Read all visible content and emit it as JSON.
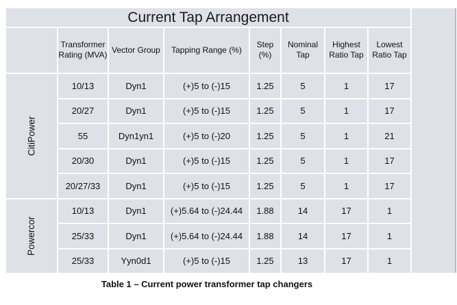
{
  "title": "Current Tap Arrangement",
  "headers": [
    "Transformer Rating (MVA)",
    "Vector Group",
    "Tapping Range (%)",
    "Step (%)",
    "Nominal Tap",
    "Highest Ratio Tap",
    "Lowest Ratio Tap"
  ],
  "groups": [
    {
      "name": "CitiPower",
      "rows": [
        [
          "10/13",
          "Dyn1",
          "(+)5 to (-)15",
          "1.25",
          "5",
          "1",
          "17"
        ],
        [
          "20/27",
          "Dyn1",
          "(+)5 to (-)15",
          "1.25",
          "5",
          "1",
          "17"
        ],
        [
          "55",
          "Dyn1yn1",
          "(+)5 to (-)20",
          "1.25",
          "5",
          "1",
          "21"
        ],
        [
          "20/30",
          "Dyn1",
          "(+)5 to (-)15",
          "1.25",
          "5",
          "1",
          "17"
        ],
        [
          "20/27/33",
          "Dyn1",
          "(+)5 to (-)15",
          "1.25",
          "5",
          "1",
          "17"
        ]
      ]
    },
    {
      "name": "Powercor",
      "rows": [
        [
          "10/13",
          "Dyn1",
          "(+)5.64 to (-)24.44",
          "1.88",
          "14",
          "17",
          "1"
        ],
        [
          "25/33",
          "Dyn1",
          "(+)5.64 to (-)24.44",
          "1.88",
          "14",
          "17",
          "1"
        ],
        [
          "25/33",
          "Yyn0d1",
          "(+)5 to (-)15",
          "1.25",
          "13",
          "17",
          "1"
        ]
      ]
    }
  ],
  "caption": "Table 1 – Current power transformer tap changers"
}
